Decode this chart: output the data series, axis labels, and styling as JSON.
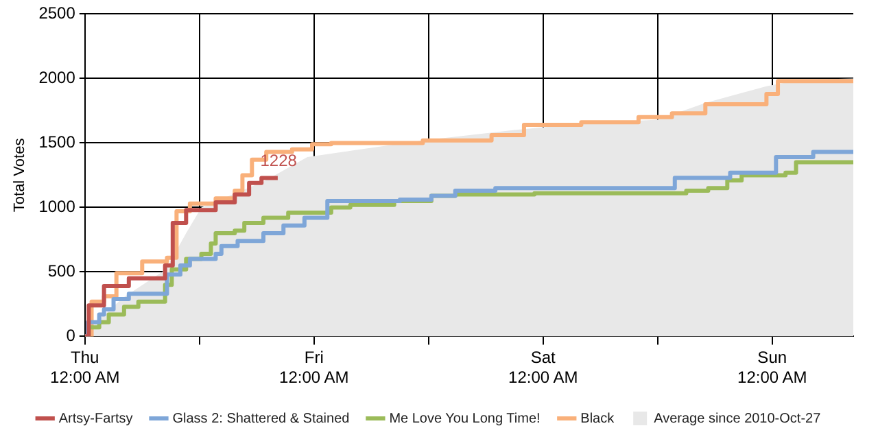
{
  "chart_data": {
    "type": "step",
    "ylabel": "Total Votes",
    "xlim": [
      "2010-10-28T00:00",
      "2010-10-31T08:30"
    ],
    "xticks": [
      {
        "value": "2010-10-28T00:00",
        "label": "Thu\n12:00 AM"
      },
      {
        "value": "2010-10-28T12:00",
        "label": null
      },
      {
        "value": "2010-10-29T00:00",
        "label": "Fri\n12:00 AM"
      },
      {
        "value": "2010-10-29T12:00",
        "label": null
      },
      {
        "value": "2010-10-30T00:00",
        "label": "Sat\n12:00 AM"
      },
      {
        "value": "2010-10-30T12:00",
        "label": null
      },
      {
        "value": "2010-10-31T00:00",
        "label": "Sun\n12:00 AM"
      }
    ],
    "ylim": [
      0,
      2500
    ],
    "yticks": [
      0,
      500,
      1000,
      1500,
      2000,
      2500
    ],
    "grid": true,
    "legend": "bottom",
    "annotations": [
      {
        "text": "1228",
        "x": "2010-10-28T20:12",
        "y": 1228
      }
    ],
    "series": [
      {
        "name": "Artsy-Fartsy",
        "color": "#c0504d",
        "x": [
          "2010-10-28T00:00",
          "2010-10-28T00:24",
          "2010-10-28T02:00",
          "2010-10-28T04:36",
          "2010-10-28T08:24",
          "2010-10-28T09:12",
          "2010-10-28T10:36",
          "2010-10-28T13:42",
          "2010-10-28T15:42",
          "2010-10-28T17:12",
          "2010-10-28T18:30",
          "2010-10-28T20:12"
        ],
        "values": [
          0,
          240,
          390,
          450,
          550,
          880,
          980,
          1040,
          1100,
          1190,
          1228,
          1228
        ]
      },
      {
        "name": "Glass 2: Shattered & Stained",
        "color": "#7ea6d8",
        "x": [
          "2010-10-28T00:00",
          "2010-10-28T00:18",
          "2010-10-28T01:30",
          "2010-10-28T02:00",
          "2010-10-28T03:00",
          "2010-10-28T04:36",
          "2010-10-28T08:36",
          "2010-10-28T10:00",
          "2010-10-28T11:00",
          "2010-10-28T13:42",
          "2010-10-28T14:18",
          "2010-10-28T16:00",
          "2010-10-28T18:42",
          "2010-10-28T20:48",
          "2010-10-28T23:00",
          "2010-10-29T01:24",
          "2010-10-29T09:00",
          "2010-10-29T12:18",
          "2010-10-29T14:48",
          "2010-10-29T19:00",
          "2010-10-30T13:48",
          "2010-10-30T19:36",
          "2010-10-31T00:24",
          "2010-10-31T04:18",
          "2010-10-31T08:30"
        ],
        "values": [
          0,
          110,
          170,
          210,
          290,
          330,
          480,
          550,
          600,
          640,
          700,
          740,
          800,
          860,
          920,
          1050,
          1060,
          1090,
          1130,
          1150,
          1230,
          1270,
          1390,
          1430,
          1430
        ]
      },
      {
        "name": "Me Love You Long Time!",
        "color": "#9bbb59",
        "x": [
          "2010-10-28T00:00",
          "2010-10-28T00:24",
          "2010-10-28T01:30",
          "2010-10-28T02:30",
          "2010-10-28T04:06",
          "2010-10-28T05:36",
          "2010-10-28T08:24",
          "2010-10-28T09:06",
          "2010-10-28T10:36",
          "2010-10-28T12:12",
          "2010-10-28T13:12",
          "2010-10-28T13:42",
          "2010-10-28T15:42",
          "2010-10-28T16:42",
          "2010-10-28T18:42",
          "2010-10-28T21:18",
          "2010-10-29T01:48",
          "2010-10-29T03:48",
          "2010-10-29T08:24",
          "2010-10-29T12:18",
          "2010-10-29T14:48",
          "2010-10-29T23:06",
          "2010-10-30T15:00",
          "2010-10-30T17:18",
          "2010-10-30T19:18",
          "2010-10-30T20:48",
          "2010-10-31T01:24",
          "2010-10-31T02:30",
          "2010-10-31T08:30"
        ],
        "values": [
          0,
          70,
          110,
          170,
          230,
          270,
          400,
          520,
          600,
          640,
          720,
          800,
          820,
          880,
          920,
          960,
          1000,
          1020,
          1050,
          1090,
          1100,
          1110,
          1130,
          1150,
          1210,
          1250,
          1270,
          1350,
          1350
        ]
      },
      {
        "name": "Black",
        "color": "#f9b07a",
        "x": [
          "2010-10-28T00:00",
          "2010-10-28T00:42",
          "2010-10-28T02:00",
          "2010-10-28T03:18",
          "2010-10-28T06:00",
          "2010-10-28T08:36",
          "2010-10-28T09:36",
          "2010-10-28T11:00",
          "2010-10-28T13:42",
          "2010-10-28T15:42",
          "2010-10-28T16:30",
          "2010-10-28T17:30",
          "2010-10-28T19:00",
          "2010-10-28T21:42",
          "2010-10-28T23:48",
          "2010-10-29T01:48",
          "2010-10-29T11:24",
          "2010-10-29T18:36",
          "2010-10-29T22:00",
          "2010-10-30T04:00",
          "2010-10-30T10:00",
          "2010-10-30T13:30",
          "2010-10-30T17:00",
          "2010-10-30T23:24",
          "2010-10-31T00:36",
          "2010-10-31T08:30"
        ],
        "values": [
          0,
          270,
          310,
          490,
          580,
          610,
          970,
          1030,
          1070,
          1130,
          1250,
          1370,
          1430,
          1450,
          1490,
          1500,
          1520,
          1560,
          1640,
          1660,
          1700,
          1730,
          1800,
          1880,
          1980,
          1980
        ]
      },
      {
        "name": "Average since\n2010-Oct-27",
        "type": "area",
        "color": "#e8e8e8",
        "x": [
          "2010-10-28T00:00",
          "2010-10-28T01:00",
          "2010-10-28T04:00",
          "2010-10-28T08:30",
          "2010-10-28T10:36",
          "2010-10-28T12:12",
          "2010-10-28T18:42",
          "2010-10-28T23:18",
          "2010-10-29T11:24",
          "2010-10-29T21:00",
          "2010-10-30T04:00",
          "2010-10-30T12:00",
          "2010-10-30T17:00",
          "2010-10-30T23:24",
          "2010-10-31T03:00",
          "2010-10-31T08:30"
        ],
        "values": [
          0,
          100,
          300,
          520,
          800,
          1000,
          1200,
          1390,
          1520,
          1600,
          1650,
          1680,
          1810,
          1940,
          1990,
          2000
        ]
      }
    ]
  }
}
